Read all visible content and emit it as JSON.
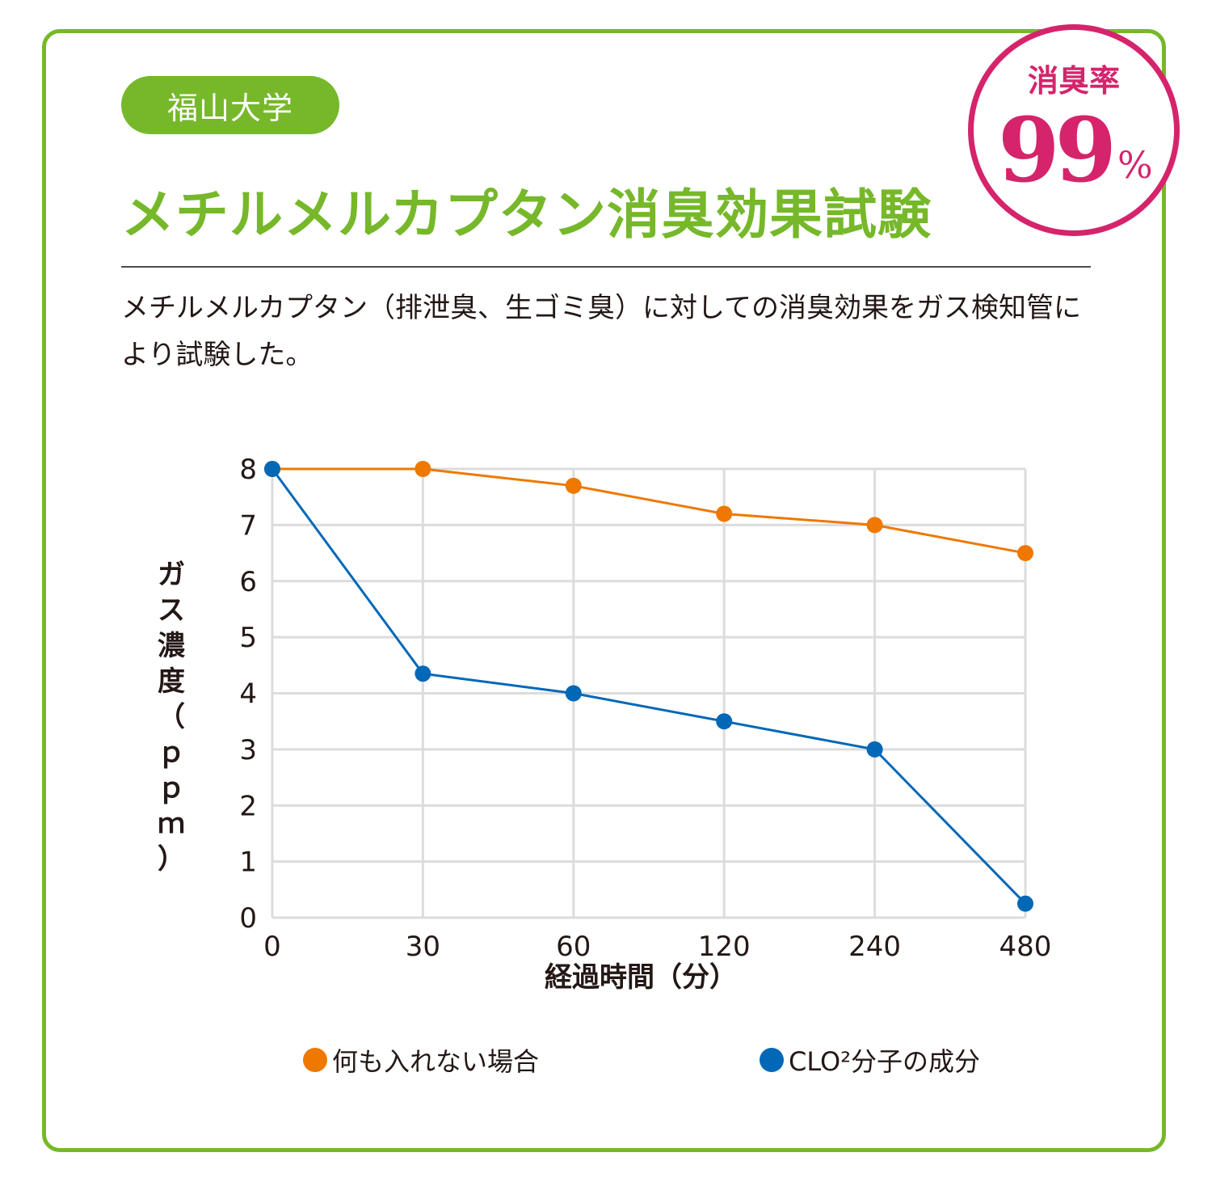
{
  "badge": "福山大学",
  "title": "メチルメルカプタン消臭効果試験",
  "description": "メチルメルカプタン（排泄臭、生ゴミ臭）に対しての消臭効果をガス検知管により試験した。",
  "seal": {
    "label": "消臭率",
    "value": "99",
    "unit": "%"
  },
  "colors": {
    "accent": "#76b82a",
    "seal": "#d5246b",
    "orange": "#ee7800",
    "blue": "#0068b7",
    "grid": "#dcdcdc"
  },
  "chart_data": {
    "type": "line",
    "categories": [
      "0",
      "30",
      "60",
      "120",
      "240",
      "480"
    ],
    "xlabel": "経過時間（分）",
    "ylabel": "ガス濃度（ｐｐｍ）",
    "ylim": [
      0,
      8
    ],
    "yticks": [
      "0",
      "1",
      "2",
      "3",
      "4",
      "5",
      "6",
      "7",
      "8"
    ],
    "grid": true,
    "legend_position": "bottom",
    "series": [
      {
        "name": "何も入れない場合",
        "color": "#ee7800",
        "values": [
          8,
          8,
          7.7,
          7.2,
          7,
          6.5
        ]
      },
      {
        "name": "CLO²分子の成分",
        "color": "#0068b7",
        "values": [
          8,
          4.35,
          4,
          3.5,
          3,
          0.25
        ]
      }
    ]
  }
}
